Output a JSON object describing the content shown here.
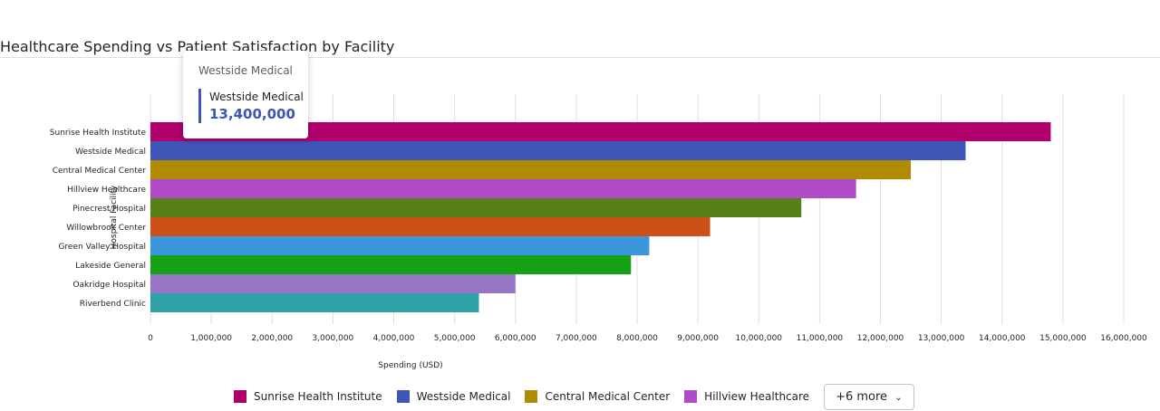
{
  "title": "Healthcare Spending vs Patient Satisfaction by Facility",
  "tooltip": {
    "header": "Westside Medical",
    "series_name": "Westside Medical",
    "value": "13,400,000",
    "color": "#3e56b8"
  },
  "legend": {
    "items": [
      {
        "label": "Sunrise Health Institute",
        "color": "#b0006c"
      },
      {
        "label": "Westside Medical",
        "color": "#3e56b8"
      },
      {
        "label": "Central Medical Center",
        "color": "#b08a00"
      },
      {
        "label": "Hillview Healthcare",
        "color": "#b04cc8"
      }
    ],
    "more_label": "+6 more",
    "more_icon": "chevron-down-icon"
  },
  "chart_data": {
    "type": "bar",
    "orientation": "horizontal",
    "categories": [
      "Sunrise Health Institute",
      "Westside Medical",
      "Central Medical Center",
      "Hillview Healthcare",
      "Pinecrest Hospital",
      "Willowbrook Center",
      "Green Valley Hospital",
      "Lakeside General",
      "Oakridge Hospital",
      "Riverbend Clinic"
    ],
    "values": [
      14800000,
      13400000,
      12500000,
      11600000,
      10700000,
      9200000,
      8200000,
      7900000,
      6000000,
      5400000
    ],
    "colors": [
      "#b0006c",
      "#3e56b8",
      "#b08a00",
      "#b04cc8",
      "#568018",
      "#cc5018",
      "#3c96dc",
      "#16a016",
      "#9676c4",
      "#2ea0a6"
    ],
    "xlabel": "Spending (USD)",
    "ylabel": "Hospital Facility",
    "xlim": [
      0,
      16000000
    ],
    "xticks": [
      "0",
      "1,000,000",
      "2,000,000",
      "3,000,000",
      "4,000,000",
      "5,000,000",
      "6,000,000",
      "7,000,000",
      "8,000,000",
      "9,000,000",
      "10,000,000",
      "11,000,000",
      "12,000,000",
      "13,000,000",
      "14,000,000",
      "15,000,000",
      "16,000,000"
    ],
    "grid": true,
    "legend_position": "bottom"
  }
}
